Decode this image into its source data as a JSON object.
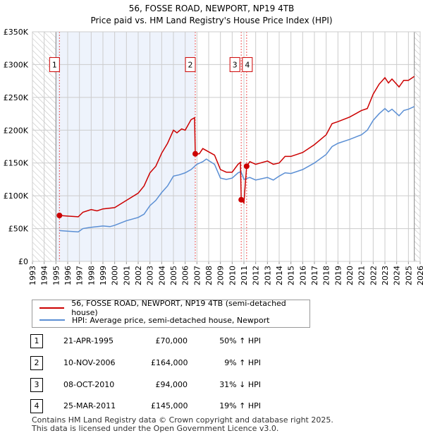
{
  "header": {
    "title": "56, FOSSE ROAD, NEWPORT, NP19 4TB",
    "subtitle": "Price paid vs. HM Land Registry's House Price Index (HPI)"
  },
  "chart_data": {
    "type": "line",
    "title": "56, FOSSE ROAD, NEWPORT, NP19 4TB",
    "subtitle": "Price paid vs. HM Land Registry's House Price Index (HPI)",
    "xlim": [
      1993,
      2026
    ],
    "ylim": [
      0,
      350000
    ],
    "x_ticks": [
      "1993",
      "1994",
      "1995",
      "1996",
      "1997",
      "1998",
      "1999",
      "2000",
      "2001",
      "2002",
      "2003",
      "2004",
      "2005",
      "2006",
      "2007",
      "2008",
      "2009",
      "2010",
      "2011",
      "2012",
      "2013",
      "2014",
      "2015",
      "2016",
      "2017",
      "2018",
      "2019",
      "2020",
      "2021",
      "2022",
      "2023",
      "2024",
      "2025",
      "2026"
    ],
    "y_ticks": [
      {
        "v": 0,
        "l": "£0"
      },
      {
        "v": 50000,
        "l": "£50K"
      },
      {
        "v": 100000,
        "l": "£100K"
      },
      {
        "v": 150000,
        "l": "£150K"
      },
      {
        "v": 200000,
        "l": "£200K"
      },
      {
        "v": 250000,
        "l": "£250K"
      },
      {
        "v": 300000,
        "l": "£300K"
      },
      {
        "v": 350000,
        "l": "£350K"
      }
    ],
    "grid": true,
    "colors": {
      "property": "#cc0000",
      "hpi": "#5b8fd4",
      "shade": "#eef3fc"
    },
    "series": [
      {
        "name": "56, FOSSE ROAD, NEWPORT, NP19 4TB (semi-detached house)",
        "x": [
          1995.3,
          1996,
          1996.9,
          1997.3,
          1998,
          1998.5,
          1999,
          2000,
          2001,
          2002,
          2002.5,
          2003,
          2003.5,
          2004,
          2004.5,
          2005,
          2005.3,
          2005.7,
          2006,
          2006.5,
          2006.8,
          2006.86,
          2007.2,
          2007.5,
          2008,
          2008.5,
          2009,
          2009.5,
          2010,
          2010.5,
          2010.7,
          2010.77,
          2011,
          2011.23,
          2011.5,
          2012,
          2013,
          2013.5,
          2014,
          2014.5,
          2015,
          2016,
          2017,
          2018,
          2018.5,
          2019,
          2020,
          2021,
          2021.5,
          2022,
          2022.5,
          2023,
          2023.3,
          2023.6,
          2024.2,
          2024.6,
          2025,
          2025.5
        ],
        "y": [
          70000,
          69000,
          68000,
          75000,
          79000,
          77000,
          80000,
          82000,
          93000,
          104000,
          115000,
          135000,
          145000,
          165000,
          180000,
          200000,
          196000,
          202000,
          200000,
          216000,
          219000,
          164000,
          164000,
          172000,
          167000,
          162000,
          140000,
          136000,
          136000,
          148000,
          151000,
          94000,
          89000,
          145000,
          152000,
          148000,
          153000,
          148000,
          150000,
          160000,
          160000,
          166000,
          178000,
          193000,
          210000,
          213000,
          220000,
          230000,
          233000,
          255000,
          270000,
          280000,
          272000,
          278000,
          266000,
          276000,
          276000,
          282000
        ]
      },
      {
        "name": "HPI: Average price, semi-detached house, Newport",
        "x": [
          1995.3,
          1996,
          1996.9,
          1997.3,
          1998,
          1999,
          1999.6,
          2000,
          2001,
          2002,
          2002.5,
          2003,
          2003.5,
          2004,
          2004.5,
          2005,
          2005.5,
          2006,
          2006.5,
          2007,
          2007.5,
          2007.8,
          2008.5,
          2009,
          2009.5,
          2010,
          2010.5,
          2010.75,
          2011,
          2011.5,
          2012,
          2013,
          2013.5,
          2014,
          2014.5,
          2015,
          2016,
          2017,
          2018,
          2018.5,
          2019,
          2020,
          2021,
          2021.5,
          2022,
          2022.5,
          2023,
          2023.3,
          2023.6,
          2024.2,
          2024.6,
          2025,
          2025.5
        ],
        "y": [
          47000,
          46000,
          45000,
          50000,
          52000,
          54000,
          53000,
          55000,
          62000,
          67000,
          72000,
          85000,
          93000,
          105000,
          115000,
          130000,
          132000,
          135000,
          140000,
          148000,
          152000,
          156000,
          148000,
          127000,
          125000,
          127000,
          135000,
          137000,
          125000,
          128000,
          124000,
          128000,
          124000,
          130000,
          135000,
          134000,
          140000,
          150000,
          163000,
          175000,
          180000,
          186000,
          193000,
          200000,
          215000,
          225000,
          233000,
          228000,
          232000,
          222000,
          230000,
          232000,
          236000
        ]
      }
    ],
    "sales": [
      {
        "label": "1",
        "x": 1995.3,
        "price": 70000
      },
      {
        "label": "2",
        "x": 2006.86,
        "price": 164000
      },
      {
        "label": "3",
        "x": 2010.77,
        "price": 94000
      },
      {
        "label": "4",
        "x": 2011.23,
        "price": 145000
      }
    ],
    "shaded_range": [
      1995.0,
      2006.86
    ],
    "hatched_ranges": [
      [
        1993,
        1995.0
      ],
      [
        2025.5,
        2026
      ]
    ]
  },
  "legend": {
    "property": "56, FOSSE ROAD, NEWPORT, NP19 4TB (semi-detached house)",
    "hpi": "HPI: Average price, semi-detached house, Newport"
  },
  "table": [
    {
      "n": "1",
      "date": "21-APR-1995",
      "price": "£70,000",
      "delta": "50% ↑ HPI"
    },
    {
      "n": "2",
      "date": "10-NOV-2006",
      "price": "£164,000",
      "delta": "9% ↑ HPI"
    },
    {
      "n": "3",
      "date": "08-OCT-2010",
      "price": "£94,000",
      "delta": "31% ↓ HPI"
    },
    {
      "n": "4",
      "date": "25-MAR-2011",
      "price": "£145,000",
      "delta": "19% ↑ HPI"
    }
  ],
  "footer": {
    "line1": "Contains HM Land Registry data © Crown copyright and database right 2025.",
    "line2": "This data is licensed under the Open Government Licence v3.0."
  }
}
